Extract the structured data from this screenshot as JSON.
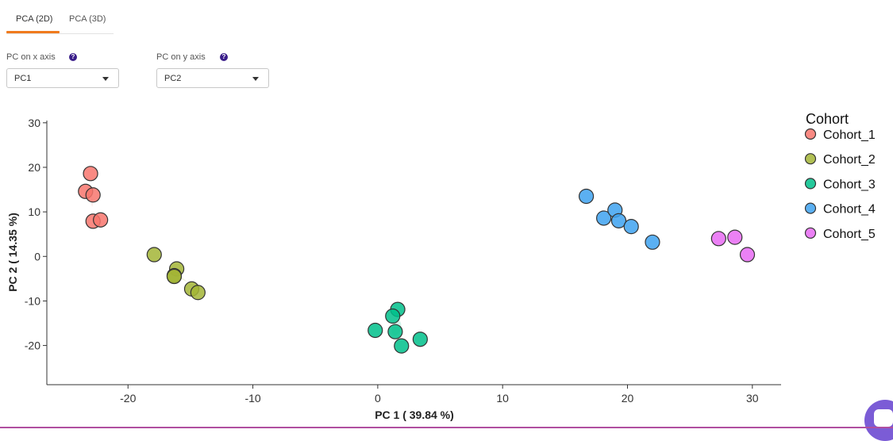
{
  "tabs": [
    {
      "label": "PCA (2D)",
      "active": true
    },
    {
      "label": "PCA (3D)",
      "active": false
    }
  ],
  "controls": {
    "x_axis": {
      "label": "PC on x axis",
      "value": "PC1",
      "help_icon": "question-icon"
    },
    "y_axis": {
      "label": "PC on y axis",
      "value": "PC2",
      "help_icon": "question-icon"
    }
  },
  "colors": {
    "accent": "#f07b1d",
    "help": "#3a1e8a"
  },
  "chart_data": {
    "type": "scatter",
    "xlabel": "PC 1 ( 39.84 %)",
    "ylabel": "PC 2 ( 14.35 %)",
    "xlim": [
      -26.5,
      32.3
    ],
    "ylim": [
      -28.8,
      30.5
    ],
    "x_ticks": [
      -20,
      -10,
      0,
      10,
      20,
      30
    ],
    "y_ticks": [
      -20,
      -10,
      0,
      10,
      20,
      30
    ],
    "grid": false,
    "legend": {
      "title": "Cohort",
      "placement": "right"
    },
    "series": [
      {
        "name": "Cohort_1",
        "color": "#f8766d",
        "x": [
          -23.0,
          -23.4,
          -22.8,
          -22.8,
          -22.2
        ],
        "y": [
          18.6,
          14.6,
          13.8,
          7.9,
          8.2
        ],
        "ellipse": {
          "cx": -22.9,
          "cy": 13.1,
          "rx": 10.9,
          "ry": 1.0,
          "angle": -87
        }
      },
      {
        "name": "Cohort_2",
        "color": "#a3b536",
        "x": [
          -17.9,
          -16.1,
          -16.3,
          -16.3,
          -14.9,
          -14.4
        ],
        "y": [
          0.4,
          -2.8,
          -4.3,
          -4.5,
          -7.3,
          -8.1
        ],
        "ellipse": {
          "cx": -15.9,
          "cy": -4.6,
          "rx": 11.1,
          "ry": 0.9,
          "angle": -31
        }
      },
      {
        "name": "Cohort_3",
        "color": "#00c08b",
        "x": [
          1.6,
          1.2,
          -0.2,
          1.4,
          3.4,
          1.9
        ],
        "y": [
          -11.9,
          -13.4,
          -16.6,
          -16.9,
          -18.6,
          -20.1
        ],
        "ellipse": {
          "cx": 1.5,
          "cy": -16.1,
          "rx": 9.8,
          "ry": 5.4,
          "angle": 71
        }
      },
      {
        "name": "Cohort_4",
        "color": "#3ea2f0",
        "x": [
          16.7,
          18.1,
          19.0,
          19.3,
          20.3,
          22.0
        ],
        "y": [
          13.5,
          8.6,
          10.4,
          8.0,
          6.7,
          3.2
        ],
        "ellipse": {
          "cx": 19.3,
          "cy": 7.8,
          "rx": 14.6,
          "ry": 0.9,
          "angle": -26
        }
      },
      {
        "name": "Cohort_5",
        "color": "#e76bf3",
        "x": [
          27.3,
          28.6,
          29.6
        ],
        "y": [
          4.0,
          4.3,
          0.4
        ],
        "ellipse": null
      }
    ]
  }
}
